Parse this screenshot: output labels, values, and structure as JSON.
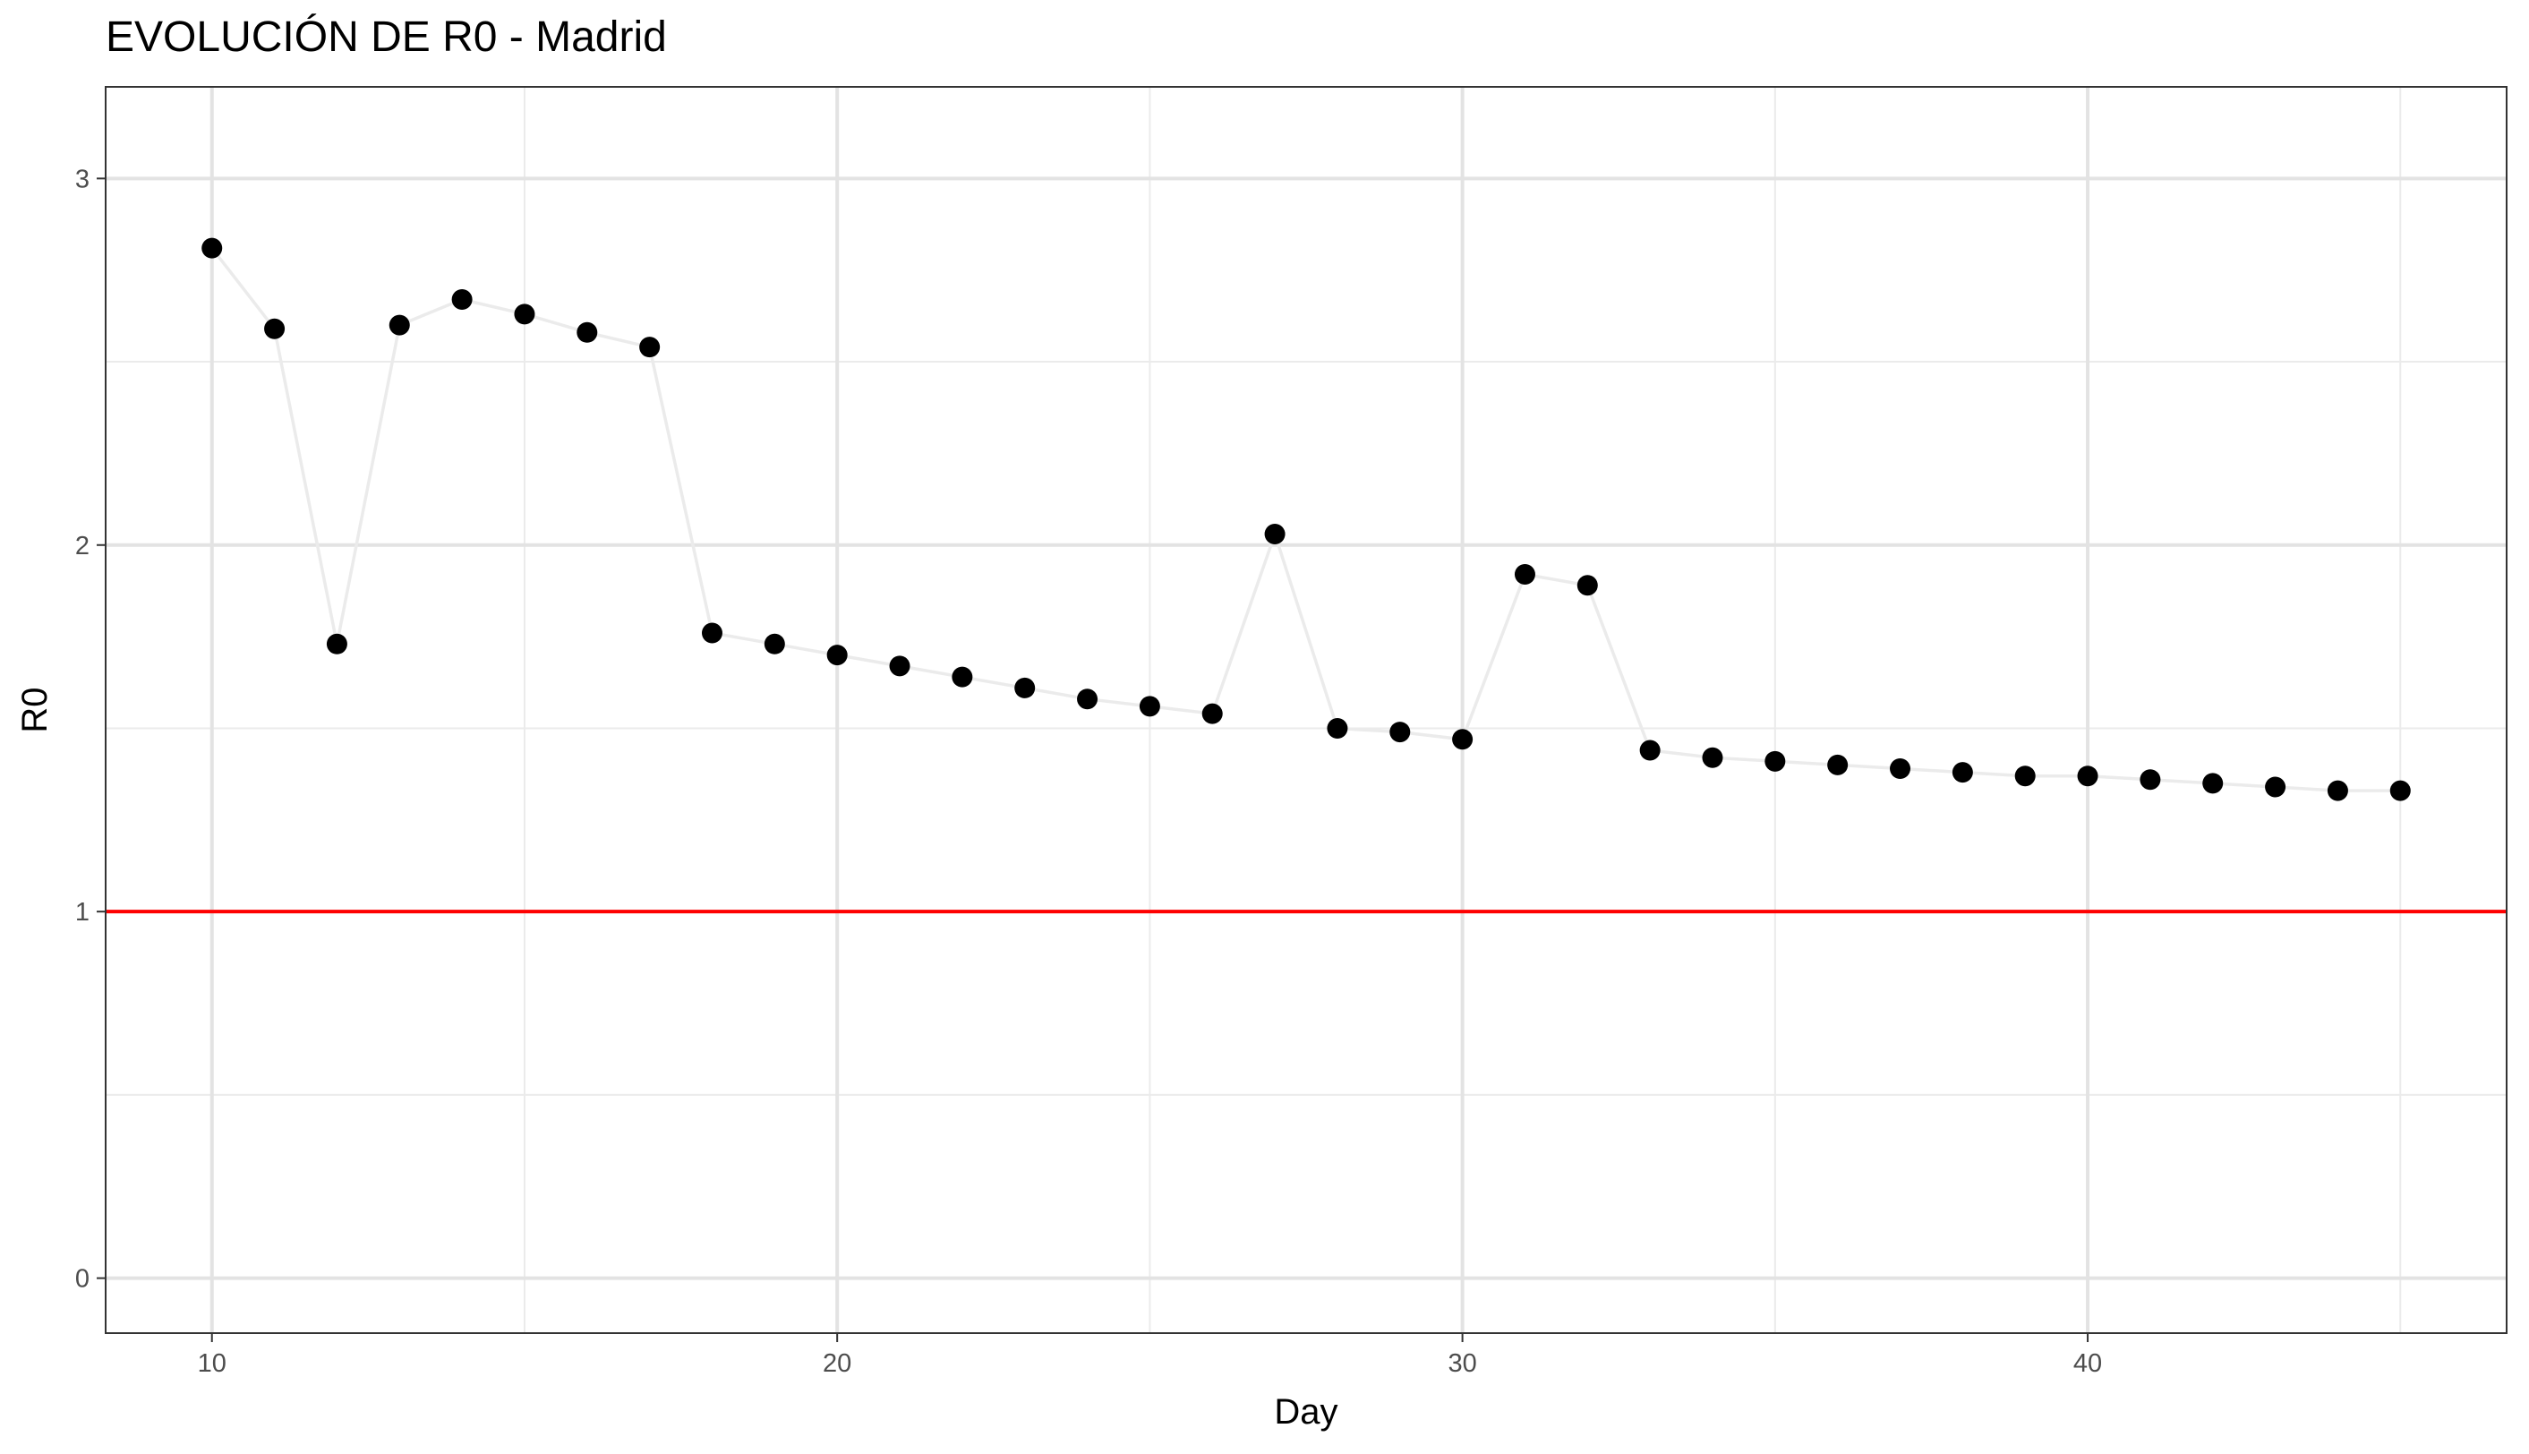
{
  "chart_data": {
    "type": "scatter",
    "title": "EVOLUCIÓN DE R0 - Madrid",
    "xlabel": "Day",
    "ylabel": "R0",
    "xlim": [
      8.3,
      46.7
    ],
    "ylim": [
      -0.15,
      3.25
    ],
    "x_ticks": [
      10,
      20,
      30,
      40
    ],
    "x_tick_labels": [
      "10",
      "20",
      "30",
      "40"
    ],
    "x_minor_ticks": [
      15,
      25,
      35,
      45
    ],
    "y_ticks": [
      0,
      1,
      2,
      3
    ],
    "y_tick_labels": [
      "0",
      "1",
      "2",
      "3"
    ],
    "y_minor_ticks": [
      0.5,
      1.5,
      2.5
    ],
    "grid": true,
    "connecting_line": true,
    "reference_line": {
      "y": 1,
      "color": "#ff0000"
    },
    "point_color": "#000000",
    "line_color": "#ebebeb",
    "series": [
      {
        "x": [
          10,
          11,
          12,
          13,
          14,
          15,
          16,
          17,
          18,
          19,
          20,
          21,
          22,
          23,
          24,
          25,
          26,
          27,
          28,
          29,
          30,
          31,
          32,
          33,
          34,
          35,
          36,
          37,
          38,
          39,
          40,
          41,
          42,
          43,
          44,
          45
        ],
        "values": [
          2.81,
          2.59,
          1.73,
          2.6,
          2.67,
          2.63,
          2.58,
          2.54,
          1.76,
          1.73,
          1.7,
          1.67,
          1.64,
          1.61,
          1.58,
          1.56,
          1.54,
          2.03,
          1.5,
          1.49,
          1.47,
          1.92,
          1.89,
          1.44,
          1.42,
          1.41,
          1.4,
          1.39,
          1.38,
          1.37,
          1.37,
          1.36,
          1.35,
          1.34,
          1.33,
          1.33
        ]
      }
    ]
  }
}
